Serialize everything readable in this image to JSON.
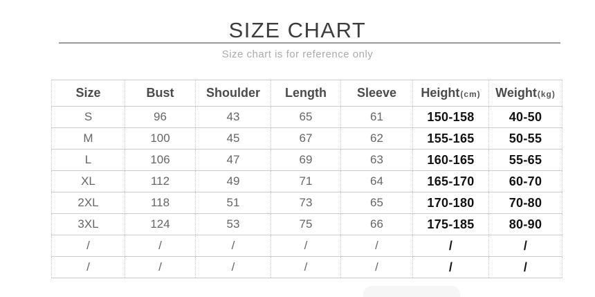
{
  "title": "SIZE CHART",
  "subtitle": "Size chart is for reference only",
  "table": {
    "headers": [
      {
        "label": "Size",
        "unit": ""
      },
      {
        "label": "Bust",
        "unit": ""
      },
      {
        "label": "Shoulder",
        "unit": ""
      },
      {
        "label": "Length",
        "unit": ""
      },
      {
        "label": "Sleeve",
        "unit": ""
      },
      {
        "label": "Height",
        "unit": "(cm)"
      },
      {
        "label": "Weight",
        "unit": "(kg)"
      }
    ],
    "emphasis_columns": [
      5,
      6
    ],
    "rows": [
      [
        "S",
        "96",
        "43",
        "65",
        "61",
        "150-158",
        "40-50"
      ],
      [
        "M",
        "100",
        "45",
        "67",
        "62",
        "155-165",
        "50-55"
      ],
      [
        "L",
        "106",
        "47",
        "69",
        "63",
        "160-165",
        "55-65"
      ],
      [
        "XL",
        "112",
        "49",
        "71",
        "64",
        "165-170",
        "60-70"
      ],
      [
        "2XL",
        "118",
        "51",
        "73",
        "65",
        "170-180",
        "70-80"
      ],
      [
        "3XL",
        "124",
        "53",
        "75",
        "66",
        "175-185",
        "80-90"
      ],
      [
        "/",
        "/",
        "/",
        "/",
        "/",
        "/",
        "/"
      ],
      [
        "/",
        "/",
        "/",
        "/",
        "/",
        "/",
        "/"
      ]
    ]
  },
  "colors": {
    "title_text": "#3d3d3d",
    "subtitle_text": "#ababab",
    "divider": "#9a9a9a",
    "header_text": "#4a4a4a",
    "cell_text": "#666666",
    "emphasis_text": "#121212",
    "border_horizontal": "#cccccc",
    "border_vertical": "#c8c8c8"
  }
}
